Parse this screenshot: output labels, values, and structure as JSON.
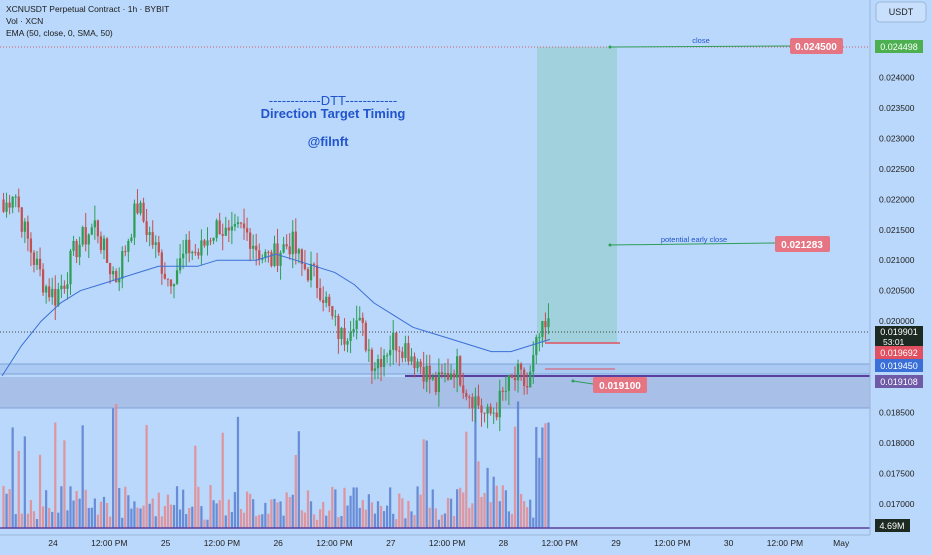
{
  "header": {
    "symbol_line": "XCNUSDT Perpetual Contract · 1h · BYBIT",
    "volume_line": "Vol · XCN",
    "ema_line": "EMA (50, close, 0, SMA, 50)",
    "currency_button": "USDT"
  },
  "annotations": {
    "dtt_line": "------------DTT------------",
    "dtt_subtitle": "Direction Target Timing",
    "handle": "@filnft",
    "close_label": "close",
    "early_close_label": "potential early close",
    "close_price": "0.024500",
    "early_close_price": "0.021283",
    "stop_price": "0.019100"
  },
  "right_axis": {
    "last_price": "0.019901",
    "countdown": "53:01",
    "ema_value": "0.019692",
    "zone_value": "0.019450",
    "line_value": "0.019108",
    "target_value": "0.024498",
    "volume_value": "4.69M"
  },
  "colors": {
    "background": "#bad8fb",
    "up_candle": "#2e9e57",
    "down_candle": "#c25151",
    "ema_line": "#3a6fd8",
    "target_zone": "#9ed0d8",
    "support_zone": "#a6bce6",
    "label_red": "#e57583",
    "label_green": "#4caf50",
    "label_purple": "#6f5aa8"
  },
  "chart_data": {
    "type": "candlestick",
    "timeframe": "1h",
    "y_ticks": [
      "0.024000",
      "0.023500",
      "0.023000",
      "0.022500",
      "0.022000",
      "0.021500",
      "0.021000",
      "0.020500",
      "0.020000",
      "0.019500",
      "0.019000",
      "0.018500",
      "0.018000",
      "0.017500",
      "0.017000"
    ],
    "x_ticks": [
      "24",
      "12:00 PM",
      "25",
      "12:00 PM",
      "26",
      "12:00 PM",
      "27",
      "12:00 PM",
      "28",
      "12:00 PM",
      "29",
      "12:00 PM",
      "30",
      "12:00 PM",
      "May"
    ],
    "ylim": [
      0.0165,
      0.0248
    ],
    "price_path": [
      0.0218,
      0.0222,
      0.0215,
      0.021,
      0.0206,
      0.0204,
      0.0207,
      0.0212,
      0.0214,
      0.0216,
      0.021,
      0.0207,
      0.0213,
      0.0219,
      0.0215,
      0.0211,
      0.0207,
      0.0209,
      0.0212,
      0.0211,
      0.0214,
      0.0216,
      0.0213,
      0.0215,
      0.0214,
      0.0211,
      0.021,
      0.0212,
      0.0213,
      0.0209,
      0.0208,
      0.0205,
      0.02,
      0.0197,
      0.0201,
      0.0198,
      0.0193,
      0.0195,
      0.0197,
      0.0196,
      0.0194,
      0.0192,
      0.0189,
      0.0191,
      0.0193,
      0.0189,
      0.0187,
      0.0184,
      0.0186,
      0.0189,
      0.0191,
      0.0189,
      0.0197,
      0.0199
    ],
    "ema": [
      0.0191,
      0.0196,
      0.02,
      0.0203,
      0.0205,
      0.0206,
      0.0207,
      0.0208,
      0.0209,
      0.0209,
      0.0209,
      0.021,
      0.021,
      0.021,
      0.0211,
      0.021,
      0.0209,
      0.0208,
      0.0206,
      0.0203,
      0.0201,
      0.0199,
      0.0198,
      0.0197,
      0.0196,
      0.0195,
      0.0195,
      0.0196,
      0.0197
    ]
  }
}
